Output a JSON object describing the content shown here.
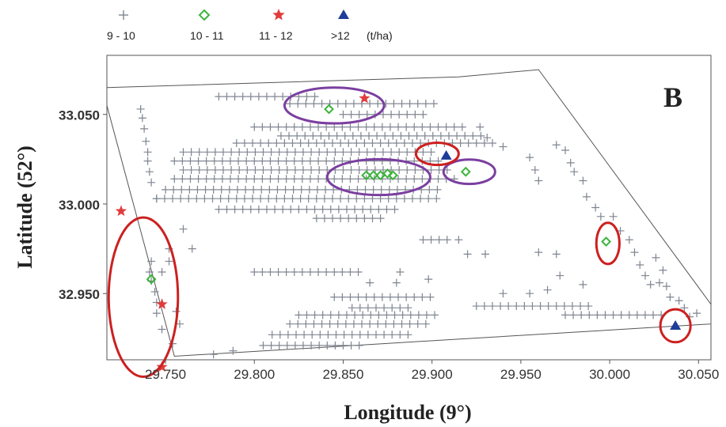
{
  "chart_data": {
    "type": "scatter",
    "panel_label": "B",
    "xlabel": "Longitude (9°)",
    "ylabel": "Latitude (52°)",
    "xlim": [
      29.717,
      30.057
    ],
    "ylim": [
      32.913,
      33.083
    ],
    "x_ticks": [
      "29.750",
      "29.800",
      "29.850",
      "29.900",
      "29.950",
      "30.000",
      "30.050"
    ],
    "y_ticks": [
      "33.050",
      "33.000",
      "32.950"
    ],
    "legend": {
      "unit": "(t/ha)",
      "items": [
        {
          "label": "9 - 10",
          "marker": "plus",
          "color": "#7f8590"
        },
        {
          "label": "10 - 11",
          "marker": "diamond",
          "color": "#3cb43c"
        },
        {
          "label": "11 - 12",
          "marker": "star",
          "color": "#e03c3c"
        },
        {
          "label": ">12",
          "marker": "triangle",
          "color": "#1f3c9a"
        }
      ]
    },
    "field_boundary": [
      [
        29.717,
        33.065
      ],
      [
        29.915,
        33.071
      ],
      [
        29.96,
        33.075
      ],
      [
        30.057,
        32.944
      ],
      [
        30.057,
        32.933
      ],
      [
        29.755,
        32.915
      ],
      [
        29.717,
        33.055
      ]
    ],
    "series": [
      {
        "name": "9 - 10",
        "marker": "plus",
        "color": "#7f8590",
        "rows": [
          {
            "y": 33.06,
            "x_from": 29.78,
            "x_to": 29.835,
            "step": 0.0045
          },
          {
            "y": 33.056,
            "x_from": 29.82,
            "x_to": 29.905,
            "step": 0.0045
          },
          {
            "y": 33.05,
            "x_from": 29.85,
            "x_to": 29.895,
            "step": 0.0045
          },
          {
            "y": 33.043,
            "x_from": 29.8,
            "x_to": 29.92,
            "step": 0.0045
          },
          {
            "y": 33.038,
            "x_from": 29.815,
            "x_to": 29.93,
            "step": 0.0045
          },
          {
            "y": 33.034,
            "x_from": 29.79,
            "x_to": 29.935,
            "step": 0.0045
          },
          {
            "y": 33.029,
            "x_from": 29.76,
            "x_to": 29.9,
            "step": 0.0045
          },
          {
            "y": 33.024,
            "x_from": 29.755,
            "x_to": 29.905,
            "step": 0.0045
          },
          {
            "y": 33.019,
            "x_from": 29.76,
            "x_to": 29.91,
            "step": 0.0045
          },
          {
            "y": 33.014,
            "x_from": 29.755,
            "x_to": 29.915,
            "step": 0.0045
          },
          {
            "y": 33.008,
            "x_from": 29.75,
            "x_to": 29.905,
            "step": 0.0045
          },
          {
            "y": 33.003,
            "x_from": 29.745,
            "x_to": 29.905,
            "step": 0.0045
          },
          {
            "y": 32.997,
            "x_from": 29.78,
            "x_to": 29.88,
            "step": 0.0045
          },
          {
            "y": 32.992,
            "x_from": 29.835,
            "x_to": 29.875,
            "step": 0.0045
          },
          {
            "y": 32.98,
            "x_from": 29.895,
            "x_to": 29.91,
            "step": 0.0045
          },
          {
            "y": 32.962,
            "x_from": 29.8,
            "x_to": 29.86,
            "step": 0.0045
          },
          {
            "y": 32.948,
            "x_from": 29.845,
            "x_to": 29.9,
            "step": 0.0045
          },
          {
            "y": 32.942,
            "x_from": 29.855,
            "x_to": 29.89,
            "step": 0.0045
          },
          {
            "y": 32.938,
            "x_from": 29.825,
            "x_to": 29.905,
            "step": 0.0045
          },
          {
            "y": 32.933,
            "x_from": 29.82,
            "x_to": 29.9,
            "step": 0.0045
          },
          {
            "y": 32.927,
            "x_from": 29.81,
            "x_to": 29.89,
            "step": 0.0045
          },
          {
            "y": 32.921,
            "x_from": 29.805,
            "x_to": 29.86,
            "step": 0.0045
          },
          {
            "y": 32.943,
            "x_from": 29.925,
            "x_to": 29.99,
            "step": 0.0045
          },
          {
            "y": 32.938,
            "x_from": 29.975,
            "x_to": 30.03,
            "step": 0.0045
          }
        ],
        "points": [
          [
            29.736,
            33.053
          ],
          [
            29.737,
            33.048
          ],
          [
            29.738,
            33.042
          ],
          [
            29.739,
            33.035
          ],
          [
            29.74,
            33.029
          ],
          [
            29.74,
            33.024
          ],
          [
            29.741,
            33.018
          ],
          [
            29.742,
            33.012
          ],
          [
            29.745,
            33.003
          ],
          [
            29.742,
            32.968
          ],
          [
            29.741,
            32.962
          ],
          [
            29.742,
            32.957
          ],
          [
            29.744,
            32.951
          ],
          [
            29.745,
            32.945
          ],
          [
            29.745,
            32.939
          ],
          [
            29.748,
            32.93
          ],
          [
            29.752,
            32.975
          ],
          [
            29.752,
            32.968
          ],
          [
            29.748,
            32.962
          ],
          [
            29.756,
            32.94
          ],
          [
            29.758,
            32.933
          ],
          [
            29.754,
            32.922
          ],
          [
            29.76,
            32.986
          ],
          [
            29.765,
            32.975
          ],
          [
            29.788,
            32.918
          ],
          [
            29.777,
            32.916
          ],
          [
            29.927,
            33.043
          ],
          [
            29.931,
            33.037
          ],
          [
            29.94,
            33.032
          ],
          [
            29.955,
            33.026
          ],
          [
            29.958,
            33.019
          ],
          [
            29.96,
            33.013
          ],
          [
            29.97,
            33.033
          ],
          [
            29.975,
            33.03
          ],
          [
            29.978,
            33.023
          ],
          [
            29.98,
            33.018
          ],
          [
            29.985,
            33.013
          ],
          [
            29.987,
            33.004
          ],
          [
            29.992,
            32.998
          ],
          [
            29.995,
            32.993
          ],
          [
            30.002,
            32.993
          ],
          [
            30.006,
            32.985
          ],
          [
            30.011,
            32.98
          ],
          [
            30.014,
            32.973
          ],
          [
            30.017,
            32.966
          ],
          [
            30.02,
            32.96
          ],
          [
            30.023,
            32.955
          ],
          [
            30.028,
            32.956
          ],
          [
            30.032,
            32.954
          ],
          [
            30.034,
            32.948
          ],
          [
            30.039,
            32.946
          ],
          [
            30.042,
            32.942
          ],
          [
            30.045,
            32.937
          ],
          [
            30.049,
            32.939
          ],
          [
            30.026,
            32.97
          ],
          [
            30.03,
            32.963
          ],
          [
            29.96,
            32.973
          ],
          [
            29.97,
            32.972
          ],
          [
            29.93,
            32.972
          ],
          [
            29.915,
            32.98
          ],
          [
            29.92,
            32.972
          ],
          [
            29.898,
            32.958
          ],
          [
            29.88,
            32.956
          ],
          [
            29.882,
            32.962
          ],
          [
            29.865,
            32.956
          ],
          [
            29.955,
            32.95
          ],
          [
            29.965,
            32.952
          ],
          [
            29.94,
            32.95
          ],
          [
            29.972,
            32.96
          ],
          [
            29.985,
            32.955
          ]
        ]
      },
      {
        "name": "10 - 11",
        "marker": "diamond",
        "color": "#3cb43c",
        "points": [
          [
            29.842,
            33.053
          ],
          [
            29.863,
            33.016
          ],
          [
            29.867,
            33.016
          ],
          [
            29.871,
            33.016
          ],
          [
            29.875,
            33.017
          ],
          [
            29.878,
            33.016
          ],
          [
            29.919,
            33.018
          ],
          [
            29.742,
            32.958
          ],
          [
            29.998,
            32.979
          ]
        ]
      },
      {
        "name": "11 - 12",
        "marker": "star",
        "color": "#e03c3c",
        "points": [
          [
            29.862,
            33.059
          ],
          [
            29.725,
            32.996
          ],
          [
            29.748,
            32.944
          ],
          [
            29.748,
            32.909
          ]
        ]
      },
      {
        "name": ">12",
        "marker": "triangle",
        "color": "#1f3c9a",
        "points": [
          [
            29.908,
            33.027
          ],
          [
            30.037,
            32.932
          ]
        ]
      }
    ],
    "highlight_ellipses": [
      {
        "cx": 29.845,
        "cy": 33.055,
        "rx": 0.028,
        "ry": 0.01,
        "color": "#7b3fa0"
      },
      {
        "cx": 29.87,
        "cy": 33.015,
        "rx": 0.029,
        "ry": 0.01,
        "color": "#7b3fa0"
      },
      {
        "cx": 29.921,
        "cy": 33.018,
        "rx": 0.0145,
        "ry": 0.0068,
        "color": "#7b3fa0"
      },
      {
        "cx": 29.903,
        "cy": 33.028,
        "rx": 0.012,
        "ry": 0.0062,
        "color": "#cc2020"
      },
      {
        "cx": 29.999,
        "cy": 32.978,
        "rx": 0.0065,
        "ry": 0.0115,
        "color": "#cc2020"
      },
      {
        "cx": 30.037,
        "cy": 32.932,
        "rx": 0.0085,
        "ry": 0.0092,
        "color": "#cc2020"
      },
      {
        "cx": 29.7375,
        "cy": 32.948,
        "rx": 0.0195,
        "ry": 0.0445,
        "color": "#cc2020"
      }
    ]
  }
}
